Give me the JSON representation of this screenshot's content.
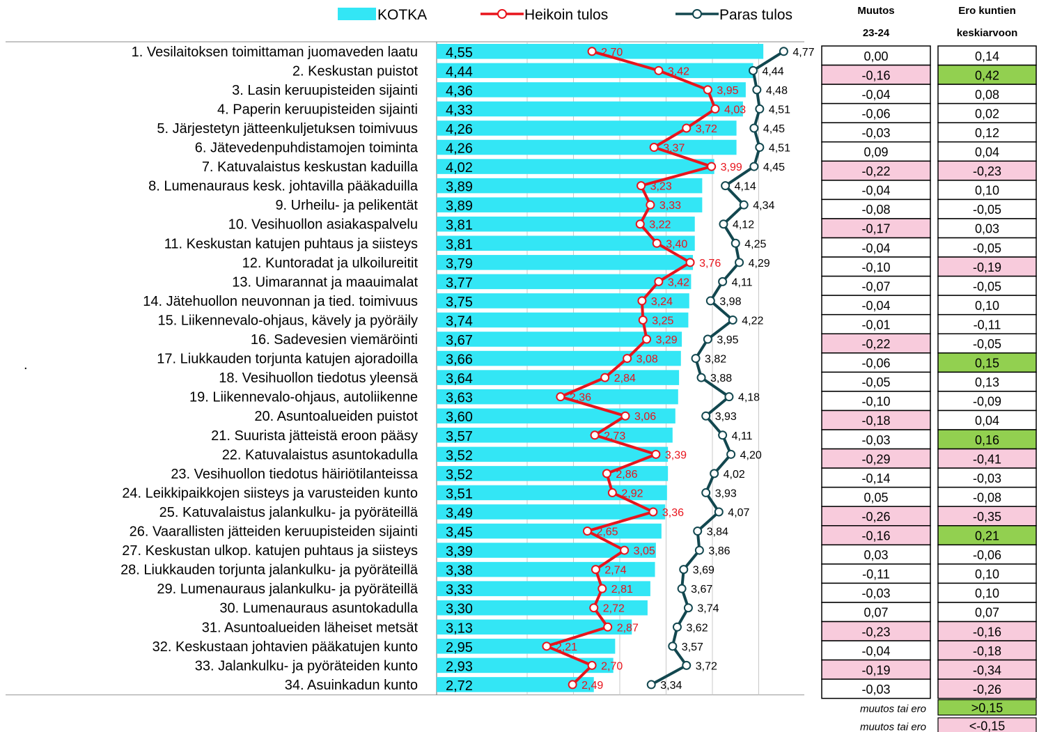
{
  "chart_data": {
    "type": "bar",
    "orientation": "horizontal",
    "xlim": [
      0,
      5
    ],
    "grid": true,
    "legend_position": "top",
    "series": [
      {
        "name": "KOTKA",
        "kind": "bar",
        "color": "#33e6f5",
        "values": [
          4.55,
          4.44,
          4.36,
          4.33,
          4.26,
          4.26,
          4.02,
          3.89,
          3.89,
          3.81,
          3.81,
          3.79,
          3.77,
          3.75,
          3.74,
          3.67,
          3.66,
          3.64,
          3.63,
          3.6,
          3.57,
          3.52,
          3.52,
          3.51,
          3.49,
          3.45,
          3.39,
          3.38,
          3.33,
          3.3,
          3.13,
          2.95,
          2.93,
          2.72
        ],
        "labels": [
          "4,55",
          "4,44",
          "4,36",
          "4,33",
          "4,26",
          "4,26",
          "4,02",
          "3,89",
          "3,89",
          "3,81",
          "3,81",
          "3,79",
          "3,77",
          "3,75",
          "3,74",
          "3,67",
          "3,66",
          "3,64",
          "3,63",
          "3,60",
          "3,57",
          "3,52",
          "3,52",
          "3,51",
          "3,49",
          "3,45",
          "3,39",
          "3,38",
          "3,33",
          "3,30",
          "3,13",
          "2,95",
          "2,93",
          "2,72"
        ]
      },
      {
        "name": "Heikoin tulos",
        "kind": "line",
        "color": "#e8141c",
        "values": [
          2.7,
          3.42,
          3.95,
          4.03,
          3.72,
          3.37,
          3.99,
          3.23,
          3.33,
          3.22,
          3.4,
          3.76,
          3.42,
          3.24,
          3.25,
          3.29,
          3.08,
          2.84,
          2.36,
          3.06,
          2.73,
          3.39,
          2.86,
          2.92,
          3.36,
          2.65,
          3.05,
          2.74,
          2.81,
          2.72,
          2.87,
          2.21,
          2.7,
          2.49
        ],
        "labels": [
          "2,70",
          "3,42",
          "3,95",
          "4,03",
          "3,72",
          "3,37",
          "3,99",
          "3,23",
          "3,33",
          "3,22",
          "3,40",
          "3,76",
          "3,42",
          "3,24",
          "3,25",
          "3,29",
          "3,08",
          "2,84",
          "2,36",
          "3,06",
          "2,73",
          "3,39",
          "2,86",
          "2,92",
          "3,36",
          "2,65",
          "3,05",
          "2,74",
          "2,81",
          "2,72",
          "2,87",
          "2,21",
          "2,70",
          "2,49"
        ]
      },
      {
        "name": "Paras tulos",
        "kind": "line",
        "color": "#12474f",
        "values": [
          4.77,
          4.44,
          4.48,
          4.51,
          4.45,
          4.51,
          4.45,
          4.14,
          4.34,
          4.12,
          4.25,
          4.29,
          4.11,
          3.98,
          4.22,
          3.95,
          3.82,
          3.88,
          4.18,
          3.93,
          4.11,
          4.2,
          4.02,
          3.93,
          4.07,
          3.84,
          3.86,
          3.69,
          3.67,
          3.74,
          3.62,
          3.57,
          3.72,
          3.34
        ],
        "labels": [
          "4,77",
          "4,44",
          "4,48",
          "4,51",
          "4,45",
          "4,51",
          "4,45",
          "4,14",
          "4,34",
          "4,12",
          "4,25",
          "4,29",
          "4,11",
          "3,98",
          "4,22",
          "3,95",
          "3,82",
          "3,88",
          "4,18",
          "3,93",
          "4,11",
          "4,20",
          "4,02",
          "3,93",
          "4,07",
          "3,84",
          "3,86",
          "3,69",
          "3,67",
          "3,74",
          "3,62",
          "3,57",
          "3,72",
          "3,34"
        ]
      }
    ],
    "categories": [
      "1. Vesilaitoksen toimittaman juomaveden laatu",
      "2. Keskustan puistot",
      "3. Lasin keruupisteiden sijainti",
      "4. Paperin keruupisteiden sijainti",
      "5. Järjestetyn jätteenkuljetuksen toimivuus",
      "6. Jätevedenpuhdistamojen toiminta",
      "7. Katuvalaistus keskustan kaduilla",
      "8. Lumenauraus kesk. johtavilla pääkaduilla",
      "9. Urheilu- ja pelikentät",
      "10. Vesihuollon asiakaspalvelu",
      "11. Keskustan katujen puhtaus ja siisteys",
      "12. Kuntoradat ja ulkoilureitit",
      "13. Uimarannat ja maauimalat",
      "14. Jätehuollon neuvonnan ja tied. toimivuus",
      "15. Liikennevalo-ohjaus, kävely ja pyöräily",
      "16. Sadevesien viemäröinti",
      "17. Liukkauden torjunta katujen ajoradoilla",
      "18. Vesihuollon tiedotus yleensä",
      "19. Liikennevalo-ohjaus, autoliikenne",
      "20. Asuntoalueiden puistot",
      "21. Suurista jätteistä eroon pääsy",
      "22. Katuvalaistus asuntokadulla",
      "23. Vesihuollon tiedotus häiriötilanteissa",
      "24. Leikkipaikkojen siisteys ja varusteiden kunto",
      "25. Katuvalaistus jalankulku- ja pyöräteillä",
      "26. Vaarallisten jätteiden keruupisteiden sijainti",
      "27. Keskustan ulkop. katujen puhtaus ja siisteys",
      "28. Liukkauden torjunta jalankulku- ja pyöräteillä",
      "29. Lumenauraus jalankulku- ja pyöräteillä",
      "30. Lumenauraus asuntokadulla",
      "31. Asuntoalueiden läheiset metsät",
      "32. Keskustaan johtavien pääkatujen kunto",
      "33. Jalankulku- ja pyöräteiden kunto",
      "34. Asuinkadun kunto"
    ],
    "table": {
      "col1_header": [
        "Muutos",
        "23-24"
      ],
      "col2_header": [
        "Ero kuntien",
        "keskiarvoon"
      ],
      "col1": [
        "0,00",
        "-0,16",
        "-0,04",
        "-0,06",
        "-0,03",
        "0,09",
        "-0,22",
        "-0,04",
        "-0,08",
        "-0,17",
        "-0,04",
        "-0,10",
        "-0,07",
        "-0,04",
        "-0,01",
        "-0,22",
        "-0,06",
        "-0,05",
        "-0,10",
        "-0,18",
        "-0,03",
        "-0,29",
        "-0,14",
        "0,05",
        "-0,26",
        "-0,16",
        "0,03",
        "-0,11",
        "-0,03",
        "0,07",
        "-0,23",
        "-0,04",
        "-0,19",
        "-0,03"
      ],
      "col2": [
        "0,14",
        "0,42",
        "0,08",
        "0,02",
        "0,12",
        "0,04",
        "-0,23",
        "0,10",
        "-0,05",
        "0,03",
        "-0,05",
        "-0,19",
        "-0,05",
        "0,10",
        "-0,11",
        "-0,05",
        "0,15",
        "0,13",
        "-0,09",
        "0,04",
        "0,16",
        "-0,41",
        "-0,03",
        "-0,08",
        "-0,35",
        "0,21",
        "-0,06",
        "0,10",
        "0,10",
        "0,07",
        "-0,16",
        "-0,18",
        "-0,34",
        "-0,26"
      ],
      "col1_highlight": [
        "",
        "neg",
        "",
        "",
        "",
        "",
        "neg",
        "",
        "",
        "neg",
        "",
        "",
        "",
        "",
        "",
        "neg",
        "",
        "",
        "",
        "neg",
        "",
        "neg",
        "",
        "",
        "neg",
        "neg",
        "",
        "",
        "",
        "",
        "neg",
        "",
        "neg",
        ""
      ],
      "col2_highlight": [
        "",
        "pos",
        "",
        "",
        "",
        "",
        "neg",
        "",
        "",
        "",
        "",
        "neg",
        "",
        "",
        "",
        "",
        "pos",
        "",
        "",
        "",
        "pos",
        "neg",
        "",
        "",
        "neg",
        "pos",
        "",
        "",
        "",
        "",
        "neg",
        "neg",
        "neg",
        "neg"
      ],
      "key": [
        {
          "label": "muutos tai ero",
          "value": ">0,15",
          "kind": "pos"
        },
        {
          "label": "muutos tai ero",
          "value": "<-0,15",
          "kind": "neg"
        }
      ],
      "colors": {
        "pos": "#92d050",
        "neg": "#f8cbdc"
      }
    },
    "stray_mark": "."
  }
}
